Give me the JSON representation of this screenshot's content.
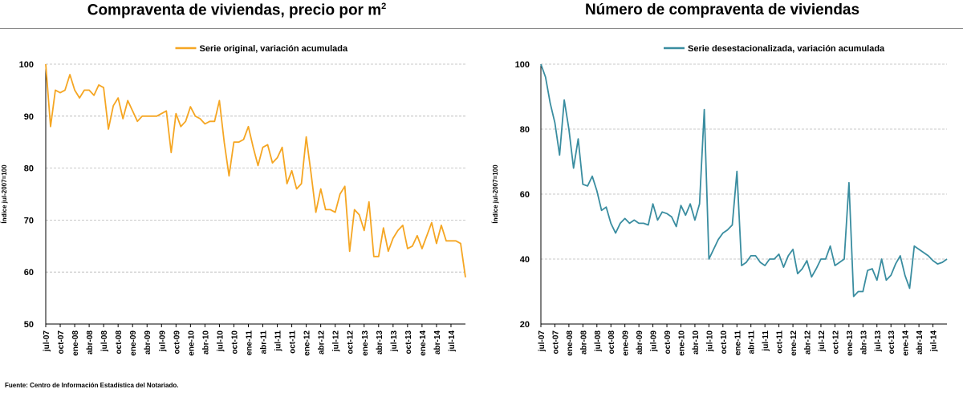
{
  "titles": {
    "left_main": "Compraventa de viviendas, precio por m",
    "left_sup": "2",
    "right": "Número de compraventa de viviendas"
  },
  "source": "Fuente: Centro de Información Estadística del Notariado.",
  "chart_data": [
    {
      "type": "line",
      "title": "Compraventa de viviendas, precio por m2",
      "ylabel": "Índice jul-2007=100",
      "ylim": [
        50,
        100
      ],
      "yticks": [
        50,
        60,
        70,
        80,
        90,
        100
      ],
      "grid": true,
      "legend_position": "top-center",
      "color": "#f5a623",
      "x_tick_labels": [
        "jul-07",
        "oct-07",
        "ene-08",
        "abr-08",
        "jul-08",
        "oct-08",
        "ene-09",
        "abr-09",
        "jul-09",
        "oct-09",
        "ene-10",
        "abr-10",
        "jul-10",
        "oct-10",
        "ene-11",
        "abr-11",
        "jul-11",
        "oct-11",
        "ene-12",
        "abr-12",
        "jul-12",
        "oct-12",
        "ene-13",
        "abr-13",
        "jul-13",
        "oct-13",
        "ene-14",
        "abr-14",
        "jul-14"
      ],
      "series": [
        {
          "name": "Serie original, variación acumulada",
          "values": [
            100,
            88,
            95,
            94.5,
            95,
            98,
            95,
            93.5,
            95,
            95,
            94,
            96,
            95.5,
            87.5,
            92,
            93.5,
            89.5,
            93,
            91,
            89,
            90,
            90,
            90,
            90,
            90.5,
            91,
            83,
            90.5,
            88,
            89,
            91.8,
            90,
            89.5,
            88.5,
            89,
            89,
            93,
            85,
            78.5,
            85,
            85,
            85.5,
            88,
            84,
            80.5,
            84,
            84.5,
            81,
            82,
            84,
            77,
            79.5,
            76,
            77,
            86,
            79,
            71.5,
            76,
            72,
            72,
            71.5,
            75,
            76.5,
            64,
            72,
            71,
            68,
            73.5,
            63,
            63,
            68.5,
            64,
            66.5,
            68,
            69,
            64.5,
            65,
            67,
            64.5,
            67,
            69.5,
            65.5,
            69,
            66,
            66,
            66,
            65.5,
            59
          ]
        }
      ]
    },
    {
      "type": "line",
      "title": "Número de compraventa de viviendas",
      "ylabel": "Índice jul-2007=100",
      "ylim": [
        20,
        100
      ],
      "yticks": [
        20,
        40,
        60,
        80,
        100
      ],
      "grid": true,
      "legend_position": "top-center",
      "color": "#3a8da0",
      "x_tick_labels": [
        "jul-07",
        "oct-07",
        "ene-08",
        "abr-08",
        "jul-08",
        "oct-08",
        "ene-09",
        "abr-09",
        "jul-09",
        "oct-09",
        "ene-10",
        "abr-10",
        "jul-10",
        "oct-10",
        "ene-11",
        "abr-11",
        "jul-11",
        "oct-11",
        "ene-12",
        "abr-12",
        "jul-12",
        "oct-12",
        "ene-13",
        "abr-13",
        "jul-13",
        "oct-13",
        "ene-14",
        "abr-14",
        "jul-14"
      ],
      "series": [
        {
          "name": "Serie desestacionalizada, variación acumulada",
          "values": [
            100,
            96,
            88,
            82,
            72,
            89,
            80,
            68,
            77,
            63,
            62.5,
            65.5,
            61,
            55,
            56,
            51,
            48,
            51,
            52.5,
            51,
            52,
            51,
            51,
            50.5,
            57,
            52,
            54.5,
            54,
            53,
            50,
            56.5,
            53.5,
            57,
            52,
            57,
            86,
            40,
            43,
            46,
            48,
            49,
            50.5,
            67,
            38,
            39,
            41,
            41,
            39,
            38,
            40,
            40,
            41.5,
            37.5,
            41,
            43,
            35.5,
            37,
            39.5,
            34.5,
            37,
            40,
            40,
            44,
            38,
            39,
            40,
            63.5,
            28.5,
            30,
            30,
            36.5,
            37,
            33.5,
            40,
            33.5,
            35,
            38.5,
            41,
            35,
            31,
            44,
            43,
            42,
            41,
            39.5,
            38.5,
            39,
            40
          ]
        }
      ]
    }
  ]
}
